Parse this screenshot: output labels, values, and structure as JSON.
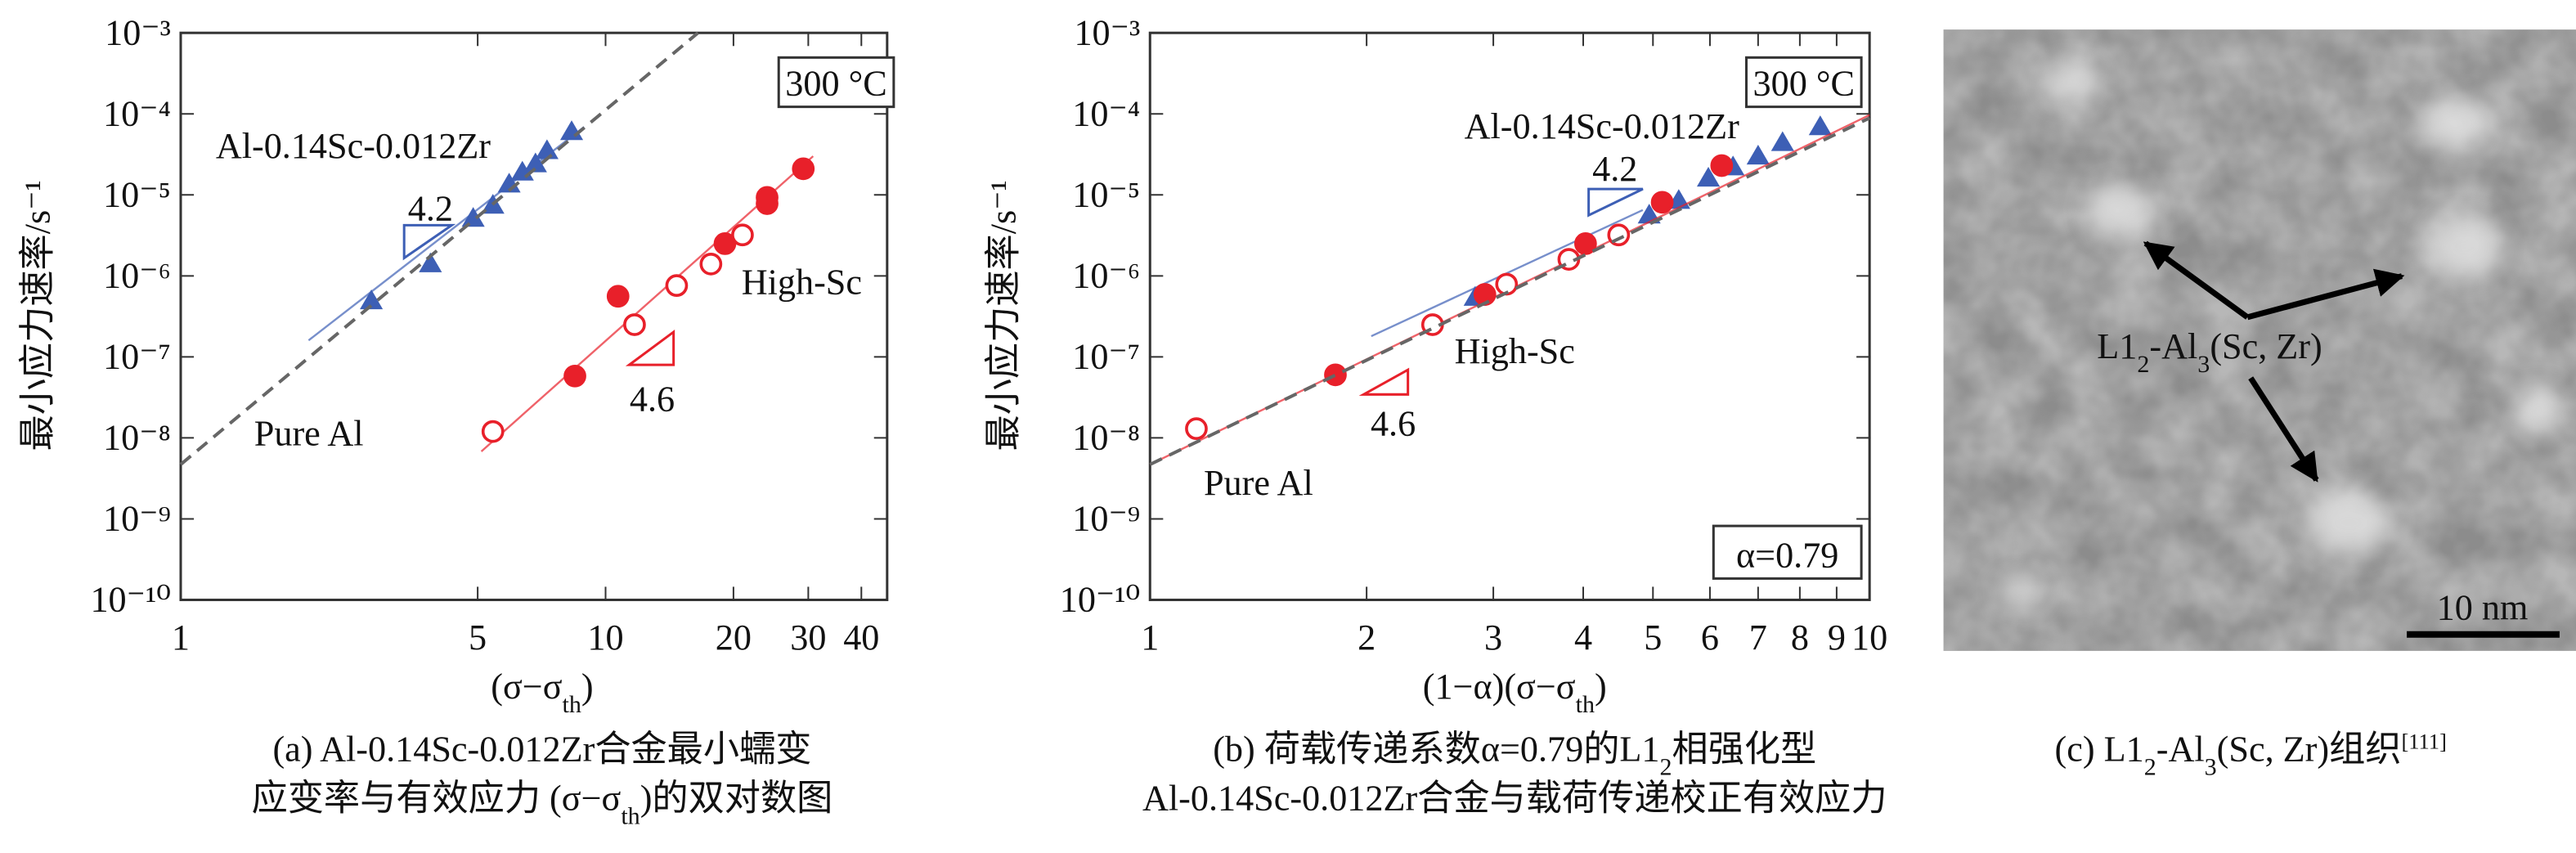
{
  "chart_data": [
    {
      "type": "scatter",
      "log_x": true,
      "log_y": true,
      "xlabel": [
        "(σ−σ",
        {
          "sub": "th"
        },
        ")"
      ],
      "ylabel": "最小应力速率/s⁻¹",
      "xlim": [
        1,
        46
      ],
      "ylim": [
        1e-10,
        0.001
      ],
      "xticks": [
        1,
        5,
        10,
        20,
        30,
        40
      ],
      "yticks": [
        {
          "value": 1e-10,
          "label": "10⁻¹⁰"
        },
        {
          "value": 1e-09,
          "label": "10⁻⁹"
        },
        {
          "value": 1e-08,
          "label": "10⁻⁸"
        },
        {
          "value": 1e-07,
          "label": "10⁻⁷"
        },
        {
          "value": 1e-06,
          "label": "10⁻⁶"
        },
        {
          "value": 1e-05,
          "label": "10⁻⁵"
        },
        {
          "value": 0.0001,
          "label": "10⁻⁴"
        },
        {
          "value": 0.001,
          "label": "10⁻³"
        }
      ],
      "series": [
        {
          "name": "Al-0.14Sc-0.012Zr",
          "color": "#3d5fb5",
          "marker": "triangle",
          "x": [
            2.81,
            3.87,
            4.88,
            5.43,
            5.93,
            6.37,
            6.84,
            7.28,
            8.32
          ],
          "values": [
            4.9e-07,
            1.4e-06,
            5.1e-06,
            7.4e-06,
            1.35e-05,
            1.9e-05,
            2.4e-05,
            3.5e-05,
            6e-05
          ],
          "fit": {
            "x": [
              2.0,
              8.9
            ],
            "values": [
              1.6e-07,
              6.9e-05
            ]
          }
        },
        {
          "name": "High-Sc",
          "color": "#e8202a",
          "marker": "circle",
          "open": [
            true,
            false,
            false,
            true,
            true,
            true,
            false,
            true,
            false,
            false,
            false
          ],
          "x": [
            5.43,
            8.47,
            10.7,
            11.7,
            14.7,
            17.7,
            19.1,
            21.0,
            24.0,
            24.0,
            29.2
          ],
          "values": [
            1.2e-08,
            5.8e-08,
            5.6e-07,
            2.5e-07,
            7.6e-07,
            1.4e-06,
            2.5e-06,
            3.2e-06,
            7.8e-06,
            9.3e-06,
            2.1e-05
          ],
          "fit": {
            "x": [
              5.1,
              30.8
            ],
            "values": [
              6.8e-09,
              3e-05
            ]
          }
        },
        {
          "name": "Pure Al",
          "color": "#666666",
          "dashed": true,
          "x": [
            1,
            16.5
          ],
          "values": [
            4.7e-09,
            0.001
          ]
        }
      ],
      "annotations": [
        "300 °C",
        "4.2",
        "4.6"
      ],
      "caption": [
        [
          "(a) Al-0.14Sc-0.012Zr合金最小蠕变"
        ],
        [
          "应变率与有效应力 (σ−σ",
          {
            "sub": "th"
          },
          ")的双对数图"
        ]
      ]
    },
    {
      "type": "scatter",
      "log_x": true,
      "log_y": true,
      "xlabel": [
        "(1−α)(σ−σ",
        {
          "sub": "th"
        },
        ")"
      ],
      "ylabel": "最小应力速率/s⁻¹",
      "xlim": [
        1,
        10
      ],
      "ylim": [
        1e-10,
        0.001
      ],
      "xticks": [
        1,
        2,
        3,
        4,
        5,
        6,
        7,
        8,
        9,
        10
      ],
      "yticks": [
        {
          "value": 1e-10,
          "label": "10⁻¹⁰"
        },
        {
          "value": 1e-09,
          "label": "10⁻⁹"
        },
        {
          "value": 1e-08,
          "label": "10⁻⁸"
        },
        {
          "value": 1e-07,
          "label": "10⁻⁷"
        },
        {
          "value": 1e-06,
          "label": "10⁻⁶"
        },
        {
          "value": 1e-05,
          "label": "10⁻⁵"
        },
        {
          "value": 0.0001,
          "label": "10⁻⁴"
        },
        {
          "value": 0.001,
          "label": "10⁻³"
        }
      ],
      "series": [
        {
          "name": "Al-0.14Sc-0.012Zr",
          "color": "#3d5fb5",
          "marker": "triangle",
          "x": [
            2.83,
            4.94,
            5.43,
            5.97,
            6.46,
            7.0,
            7.57,
            8.54
          ],
          "values": [
            5.4e-07,
            5.6e-06,
            8.5e-06,
            1.6e-05,
            2.2e-05,
            3e-05,
            4.4e-05,
            6.9e-05
          ],
          "fit": {
            "x": [
              2.03,
              4.84
            ],
            "values": [
              1.8e-07,
              6.5e-06
            ]
          }
        },
        {
          "name": "High-Sc",
          "color": "#e8202a",
          "marker": "circle",
          "open": [
            true,
            false,
            true,
            false,
            true,
            true,
            false,
            true,
            false,
            false
          ],
          "x": [
            1.16,
            1.81,
            2.47,
            2.92,
            3.13,
            3.82,
            4.03,
            4.48,
            5.15,
            6.23
          ],
          "values": [
            1.3e-08,
            6e-08,
            2.5e-07,
            5.9e-07,
            7.9e-07,
            1.6e-06,
            2.5e-06,
            3.2e-06,
            8.1e-06,
            2.3e-05
          ],
          "fit": {
            "x": [
              1,
              10
            ],
            "values": [
              4.7e-09,
              9.7e-05
            ]
          }
        },
        {
          "name": "Pure Al",
          "color": "#666666",
          "dashed": true,
          "x": [
            1,
            10
          ],
          "values": [
            4.7e-09,
            8.9e-05
          ]
        }
      ],
      "annotations": [
        "300 °C",
        "4.2",
        "4.6",
        "α=0.79"
      ],
      "caption": [
        [
          "(b) 荷载传递系数α=0.79的L1",
          {
            "sub": "2"
          },
          "相强化型"
        ],
        [
          "Al-0.14Sc-0.012Zr合金与载荷传递校正有效应力"
        ]
      ]
    }
  ],
  "panel_c": {
    "label": [
      "L1",
      {
        "sub": "2"
      },
      "-Al",
      {
        "sub": "3"
      },
      "(Sc, Zr)"
    ],
    "scale_bar": "10 nm",
    "caption": [
      [
        "(c) L1",
        {
          "sub": "2"
        },
        "-Al",
        {
          "sub": "3"
        },
        "(Sc, Zr)组织",
        {
          "sup": "[111]"
        }
      ]
    ]
  }
}
